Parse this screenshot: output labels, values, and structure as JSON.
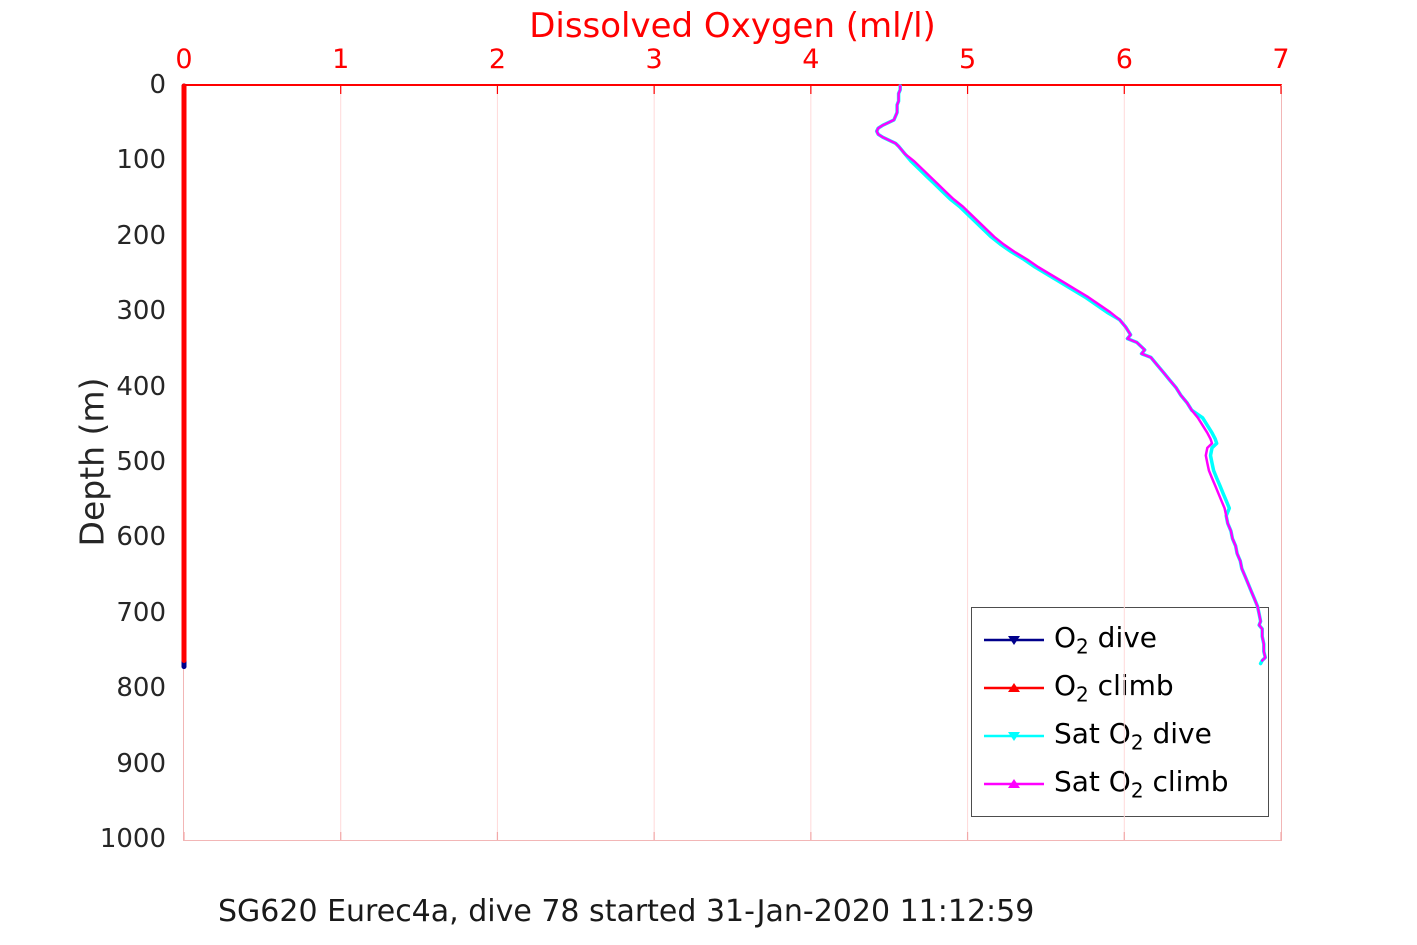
{
  "figure": {
    "title": "Dissolved Oxygen (ml/l)",
    "caption": "SG620 Eurec4a, dive 78 started 31-Jan-2020 11:12:59"
  },
  "chart_data": {
    "type": "line",
    "title": "Dissolved Oxygen (ml/l)",
    "xlabel": "Dissolved Oxygen (ml/l)",
    "xlabel_position": "top",
    "ylabel": "Depth (m)",
    "xlim": [
      0,
      7
    ],
    "ylim": [
      0,
      1000
    ],
    "y_reversed": true,
    "xticks": [
      0,
      1,
      2,
      3,
      4,
      5,
      6,
      7
    ],
    "yticks": [
      0,
      100,
      200,
      300,
      400,
      500,
      600,
      700,
      800,
      900,
      1000
    ],
    "grid": "vertical",
    "grid_color": "#ffd9d9",
    "x_axis_color": "#ff0000",
    "y_axis_color": "#262626",
    "legend_position": "lower right",
    "caption": "SG620 Eurec4a, dive 78 started 31-Jan-2020 11:12:59",
    "points_format": "[depth_m, oxygen_ml_per_l]",
    "series": [
      {
        "name": "O2 dive",
        "color": "#00008B",
        "width": 5,
        "points": [
          [
            0,
            0
          ],
          [
            770,
            0
          ]
        ]
      },
      {
        "name": "O2 climb",
        "color": "#FF0000",
        "width": 5,
        "points": [
          [
            0,
            0
          ],
          [
            762,
            0
          ]
        ]
      },
      {
        "name": "Sat O2 dive",
        "color": "#00FFFF",
        "width": 3.5,
        "points": [
          [
            0,
            4.57
          ],
          [
            5,
            4.57
          ],
          [
            10,
            4.56
          ],
          [
            15,
            4.56
          ],
          [
            20,
            4.56
          ],
          [
            25,
            4.55
          ],
          [
            30,
            4.55
          ],
          [
            35,
            4.55
          ],
          [
            40,
            4.54
          ],
          [
            45,
            4.53
          ],
          [
            48,
            4.5
          ],
          [
            52,
            4.46
          ],
          [
            56,
            4.43
          ],
          [
            60,
            4.42
          ],
          [
            64,
            4.43
          ],
          [
            68,
            4.46
          ],
          [
            72,
            4.5
          ],
          [
            76,
            4.54
          ],
          [
            80,
            4.56
          ],
          [
            85,
            4.58
          ],
          [
            90,
            4.6
          ],
          [
            95,
            4.62
          ],
          [
            100,
            4.64
          ],
          [
            110,
            4.69
          ],
          [
            120,
            4.74
          ],
          [
            130,
            4.79
          ],
          [
            140,
            4.84
          ],
          [
            150,
            4.89
          ],
          [
            160,
            4.95
          ],
          [
            170,
            5.0
          ],
          [
            180,
            5.05
          ],
          [
            190,
            5.1
          ],
          [
            200,
            5.15
          ],
          [
            210,
            5.21
          ],
          [
            220,
            5.28
          ],
          [
            230,
            5.36
          ],
          [
            240,
            5.43
          ],
          [
            250,
            5.51
          ],
          [
            260,
            5.59
          ],
          [
            270,
            5.67
          ],
          [
            280,
            5.75
          ],
          [
            290,
            5.82
          ],
          [
            300,
            5.89
          ],
          [
            310,
            5.97
          ],
          [
            320,
            6.01
          ],
          [
            330,
            6.04
          ],
          [
            335,
            6.02
          ],
          [
            340,
            6.08
          ],
          [
            350,
            6.13
          ],
          [
            355,
            6.11
          ],
          [
            360,
            6.17
          ],
          [
            370,
            6.21
          ],
          [
            380,
            6.25
          ],
          [
            390,
            6.29
          ],
          [
            400,
            6.33
          ],
          [
            410,
            6.36
          ],
          [
            420,
            6.4
          ],
          [
            430,
            6.43
          ],
          [
            440,
            6.5
          ],
          [
            450,
            6.53
          ],
          [
            460,
            6.56
          ],
          [
            468,
            6.58
          ],
          [
            474,
            6.59
          ],
          [
            480,
            6.56
          ],
          [
            490,
            6.55
          ],
          [
            500,
            6.56
          ],
          [
            510,
            6.57
          ],
          [
            520,
            6.59
          ],
          [
            530,
            6.61
          ],
          [
            540,
            6.63
          ],
          [
            550,
            6.65
          ],
          [
            560,
            6.67
          ],
          [
            570,
            6.65
          ],
          [
            580,
            6.66
          ],
          [
            590,
            6.68
          ],
          [
            600,
            6.69
          ],
          [
            610,
            6.71
          ],
          [
            620,
            6.72
          ],
          [
            630,
            6.74
          ],
          [
            640,
            6.75
          ],
          [
            650,
            6.77
          ],
          [
            660,
            6.79
          ],
          [
            670,
            6.81
          ],
          [
            680,
            6.83
          ],
          [
            690,
            6.85
          ],
          [
            700,
            6.86
          ],
          [
            710,
            6.87
          ],
          [
            715,
            6.86
          ],
          [
            720,
            6.88
          ],
          [
            730,
            6.88
          ],
          [
            740,
            6.89
          ],
          [
            750,
            6.89
          ],
          [
            758,
            6.9
          ],
          [
            762,
            6.88
          ],
          [
            766,
            6.87
          ]
        ]
      },
      {
        "name": "Sat O2 climb",
        "color": "#FF00FF",
        "width": 2.5,
        "points": [
          [
            0,
            4.57
          ],
          [
            5,
            4.57
          ],
          [
            10,
            4.56
          ],
          [
            15,
            4.56
          ],
          [
            20,
            4.56
          ],
          [
            25,
            4.55
          ],
          [
            30,
            4.55
          ],
          [
            35,
            4.55
          ],
          [
            40,
            4.54
          ],
          [
            45,
            4.53
          ],
          [
            48,
            4.5
          ],
          [
            52,
            4.46
          ],
          [
            56,
            4.43
          ],
          [
            60,
            4.42
          ],
          [
            64,
            4.43
          ],
          [
            68,
            4.46
          ],
          [
            72,
            4.5
          ],
          [
            76,
            4.54
          ],
          [
            80,
            4.56
          ],
          [
            85,
            4.58
          ],
          [
            90,
            4.6
          ],
          [
            95,
            4.63
          ],
          [
            100,
            4.66
          ],
          [
            110,
            4.71
          ],
          [
            120,
            4.76
          ],
          [
            130,
            4.81
          ],
          [
            140,
            4.86
          ],
          [
            150,
            4.91
          ],
          [
            160,
            4.97
          ],
          [
            170,
            5.02
          ],
          [
            180,
            5.07
          ],
          [
            190,
            5.12
          ],
          [
            200,
            5.17
          ],
          [
            210,
            5.23
          ],
          [
            220,
            5.3
          ],
          [
            230,
            5.38
          ],
          [
            240,
            5.45
          ],
          [
            250,
            5.53
          ],
          [
            260,
            5.61
          ],
          [
            270,
            5.69
          ],
          [
            280,
            5.77
          ],
          [
            290,
            5.84
          ],
          [
            300,
            5.91
          ],
          [
            310,
            5.97
          ],
          [
            320,
            6.01
          ],
          [
            330,
            6.04
          ],
          [
            335,
            6.02
          ],
          [
            340,
            6.08
          ],
          [
            350,
            6.13
          ],
          [
            355,
            6.11
          ],
          [
            360,
            6.17
          ],
          [
            370,
            6.21
          ],
          [
            380,
            6.25
          ],
          [
            390,
            6.29
          ],
          [
            400,
            6.33
          ],
          [
            410,
            6.36
          ],
          [
            420,
            6.4
          ],
          [
            430,
            6.43
          ],
          [
            440,
            6.47
          ],
          [
            450,
            6.5
          ],
          [
            460,
            6.53
          ],
          [
            468,
            6.55
          ],
          [
            474,
            6.56
          ],
          [
            480,
            6.53
          ],
          [
            490,
            6.52
          ],
          [
            500,
            6.53
          ],
          [
            510,
            6.54
          ],
          [
            520,
            6.56
          ],
          [
            530,
            6.58
          ],
          [
            540,
            6.6
          ],
          [
            550,
            6.62
          ],
          [
            560,
            6.64
          ],
          [
            570,
            6.65
          ],
          [
            580,
            6.66
          ],
          [
            590,
            6.68
          ],
          [
            600,
            6.69
          ],
          [
            610,
            6.71
          ],
          [
            620,
            6.72
          ],
          [
            630,
            6.74
          ],
          [
            640,
            6.75
          ],
          [
            650,
            6.77
          ],
          [
            660,
            6.79
          ],
          [
            670,
            6.81
          ],
          [
            680,
            6.83
          ],
          [
            690,
            6.85
          ],
          [
            700,
            6.86
          ],
          [
            710,
            6.87
          ],
          [
            715,
            6.86
          ],
          [
            720,
            6.88
          ],
          [
            730,
            6.88
          ],
          [
            740,
            6.89
          ],
          [
            750,
            6.89
          ],
          [
            758,
            6.9
          ],
          [
            762,
            6.88
          ]
        ]
      }
    ]
  },
  "legend": {
    "items": [
      {
        "id": "o2-dive",
        "color": "#00008B",
        "marker": "triangle-down",
        "label": {
          "pre": "O",
          "sub": "2",
          "post": " dive"
        }
      },
      {
        "id": "o2-climb",
        "color": "#FF0000",
        "marker": "triangle-up",
        "label": {
          "pre": "O",
          "sub": "2",
          "post": " climb"
        }
      },
      {
        "id": "sat-o2-dive",
        "color": "#00FFFF",
        "marker": "triangle-down",
        "label": {
          "pre": "Sat O",
          "sub": "2",
          "post": " dive"
        }
      },
      {
        "id": "sat-o2-climb",
        "color": "#FF00FF",
        "marker": "triangle-up",
        "label": {
          "pre": "Sat O",
          "sub": "2",
          "post": " climb"
        }
      }
    ]
  }
}
